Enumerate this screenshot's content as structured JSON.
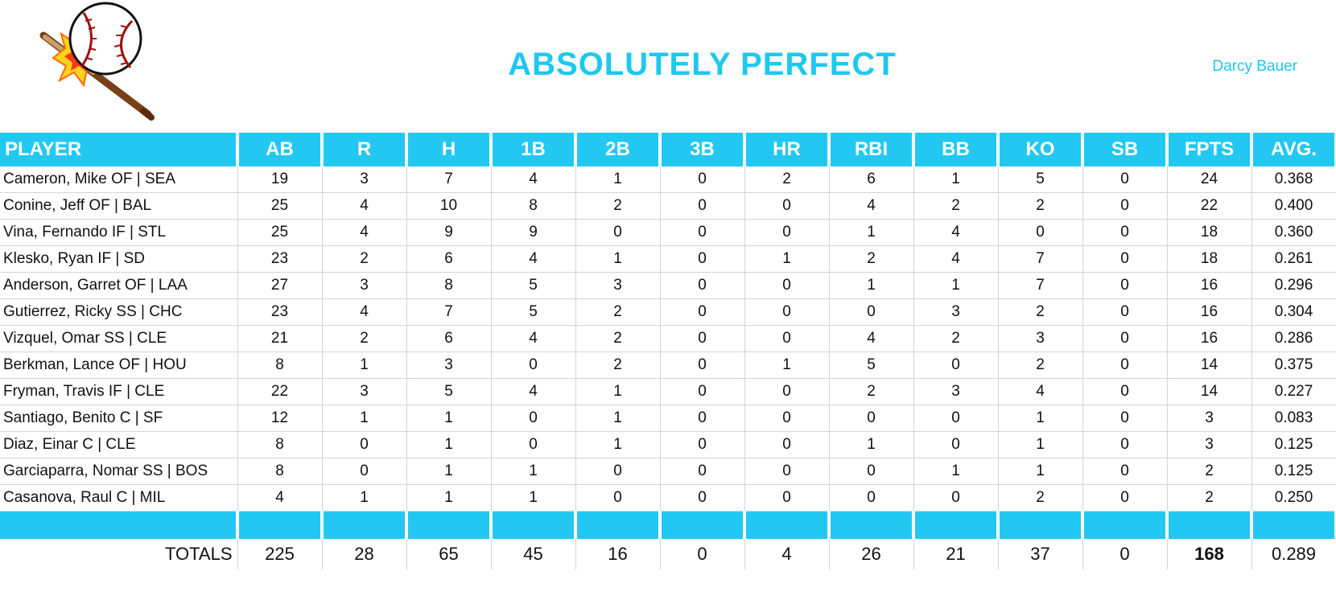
{
  "header": {
    "title": "ABSOLUTELY PERFECT",
    "owner": "Darcy Bauer",
    "logo_icon": "baseball-bat-icon"
  },
  "table": {
    "columns": [
      "PLAYER",
      "AB",
      "R",
      "H",
      "1B",
      "2B",
      "3B",
      "HR",
      "RBI",
      "BB",
      "KO",
      "SB",
      "FPTS",
      "AVG."
    ],
    "rows": [
      [
        "Cameron, Mike OF | SEA",
        "19",
        "3",
        "7",
        "4",
        "1",
        "0",
        "2",
        "6",
        "1",
        "5",
        "0",
        "24",
        "0.368"
      ],
      [
        "Conine, Jeff OF | BAL",
        "25",
        "4",
        "10",
        "8",
        "2",
        "0",
        "0",
        "4",
        "2",
        "2",
        "0",
        "22",
        "0.400"
      ],
      [
        "Vina, Fernando IF | STL",
        "25",
        "4",
        "9",
        "9",
        "0",
        "0",
        "0",
        "1",
        "4",
        "0",
        "0",
        "18",
        "0.360"
      ],
      [
        "Klesko, Ryan IF | SD",
        "23",
        "2",
        "6",
        "4",
        "1",
        "0",
        "1",
        "2",
        "4",
        "7",
        "0",
        "18",
        "0.261"
      ],
      [
        "Anderson, Garret OF | LAA",
        "27",
        "3",
        "8",
        "5",
        "3",
        "0",
        "0",
        "1",
        "1",
        "7",
        "0",
        "16",
        "0.296"
      ],
      [
        "Gutierrez, Ricky SS | CHC",
        "23",
        "4",
        "7",
        "5",
        "2",
        "0",
        "0",
        "0",
        "3",
        "2",
        "0",
        "16",
        "0.304"
      ],
      [
        "Vizquel, Omar SS | CLE",
        "21",
        "2",
        "6",
        "4",
        "2",
        "0",
        "0",
        "4",
        "2",
        "3",
        "0",
        "16",
        "0.286"
      ],
      [
        "Berkman, Lance OF | HOU",
        "8",
        "1",
        "3",
        "0",
        "2",
        "0",
        "1",
        "5",
        "0",
        "2",
        "0",
        "14",
        "0.375"
      ],
      [
        "Fryman, Travis IF | CLE",
        "22",
        "3",
        "5",
        "4",
        "1",
        "0",
        "0",
        "2",
        "3",
        "4",
        "0",
        "14",
        "0.227"
      ],
      [
        "Santiago, Benito C | SF",
        "12",
        "1",
        "1",
        "0",
        "1",
        "0",
        "0",
        "0",
        "0",
        "1",
        "0",
        "3",
        "0.083"
      ],
      [
        "Diaz, Einar C | CLE",
        "8",
        "0",
        "1",
        "0",
        "1",
        "0",
        "0",
        "1",
        "0",
        "1",
        "0",
        "3",
        "0.125"
      ],
      [
        "Garciaparra, Nomar SS | BOS",
        "8",
        "0",
        "1",
        "1",
        "0",
        "0",
        "0",
        "0",
        "1",
        "1",
        "0",
        "2",
        "0.125"
      ],
      [
        "Casanova, Raul C | MIL",
        "4",
        "1",
        "1",
        "1",
        "0",
        "0",
        "0",
        "0",
        "0",
        "2",
        "0",
        "2",
        "0.250"
      ]
    ],
    "totals": [
      "TOTALS",
      "225",
      "28",
      "65",
      "45",
      "16",
      "0",
      "4",
      "26",
      "21",
      "37",
      "0",
      "168",
      "0.289"
    ]
  },
  "colors": {
    "accent": "#22c8f2",
    "title": "#1ec8f0"
  }
}
